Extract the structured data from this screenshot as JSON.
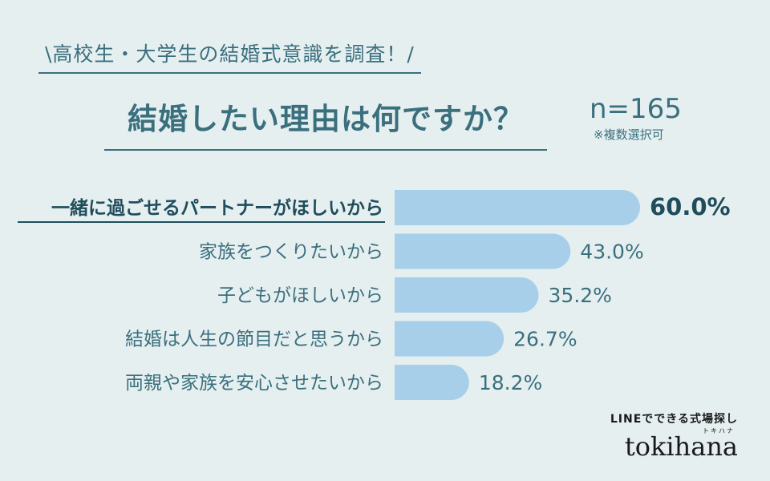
{
  "header": {
    "survey_title": "\\高校生・大学生の結婚式意識を調査！/",
    "question": "結婚したい理由は何ですか？",
    "sample_size": "n=165",
    "note": "※複数選択可"
  },
  "chart_data": {
    "type": "bar",
    "orientation": "horizontal",
    "categories": [
      "一緒に過ごせるパートナーがほしいから",
      "家族をつくりたいから",
      "子どもがほしいから",
      "結婚は人生の節目だと思うから",
      "両親や家族を安心させたいから"
    ],
    "values": [
      60.0,
      43.0,
      35.2,
      26.7,
      18.2
    ],
    "value_labels": [
      "60.0%",
      "43.0%",
      "35.2%",
      "26.7%",
      "18.2%"
    ],
    "unit": "%",
    "bar_color": "#a7cfea",
    "highlight_color": "#1f4d5c"
  },
  "brand": {
    "tagline": "LINEでできる式場探し",
    "logo": "tokihana",
    "logo_sub": "トキハナ"
  },
  "colors": {
    "background": "#e6eff0",
    "text": "#3a6f7e"
  }
}
